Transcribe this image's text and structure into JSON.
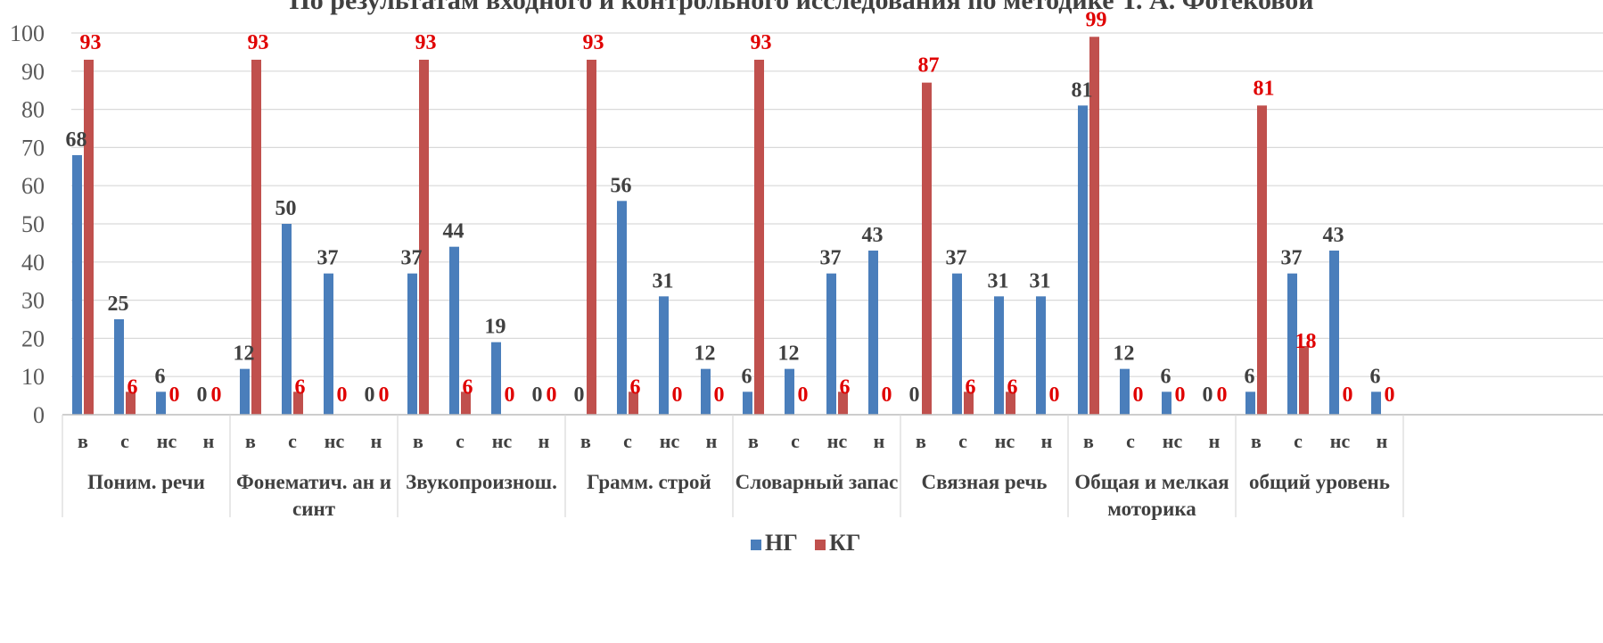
{
  "chart_data": {
    "type": "bar",
    "title": "По результатам входного и контрольного исследования по методике Т. А. Фотековой",
    "xlabel": "",
    "ylabel": "",
    "ylim": [
      0,
      100
    ],
    "yticks": [
      0,
      10,
      20,
      30,
      40,
      50,
      60,
      70,
      80,
      90,
      100
    ],
    "grid": true,
    "legend_position": "bottom",
    "subcategories": [
      "в",
      "с",
      "нс",
      "н"
    ],
    "groups": [
      {
        "label": [
          "Поним. речи"
        ],
        "ng": [
          68,
          25,
          6,
          0
        ],
        "kg": [
          93,
          6,
          0,
          0
        ]
      },
      {
        "label": [
          "Фонематич. ан и",
          "синт"
        ],
        "ng": [
          12,
          50,
          37,
          0
        ],
        "kg": [
          93,
          6,
          0,
          0
        ]
      },
      {
        "label": [
          "Звукопроизнош."
        ],
        "ng": [
          37,
          44,
          19,
          0
        ],
        "kg": [
          93,
          6,
          0,
          0
        ]
      },
      {
        "label": [
          "Грамм. строй"
        ],
        "ng": [
          0,
          56,
          31,
          12
        ],
        "kg": [
          93,
          6,
          0,
          0
        ]
      },
      {
        "label": [
          "Словарный запас"
        ],
        "ng": [
          6,
          12,
          37,
          43
        ],
        "kg": [
          93,
          0,
          6,
          0
        ]
      },
      {
        "label": [
          "Связная речь"
        ],
        "ng": [
          0,
          37,
          31,
          31
        ],
        "kg": [
          87,
          6,
          6,
          0
        ]
      },
      {
        "label": [
          "Общая и мелкая",
          "моторика"
        ],
        "ng": [
          81,
          12,
          6,
          0
        ],
        "kg": [
          99,
          0,
          0,
          0
        ]
      },
      {
        "label": [
          "общий уровень"
        ],
        "ng": [
          6,
          37,
          43,
          6
        ],
        "kg": [
          81,
          18,
          0,
          0
        ]
      }
    ],
    "series": [
      {
        "name": "НГ",
        "color": "#4a7ebb"
      },
      {
        "name": "КГ",
        "color": "#c0504d"
      }
    ]
  }
}
